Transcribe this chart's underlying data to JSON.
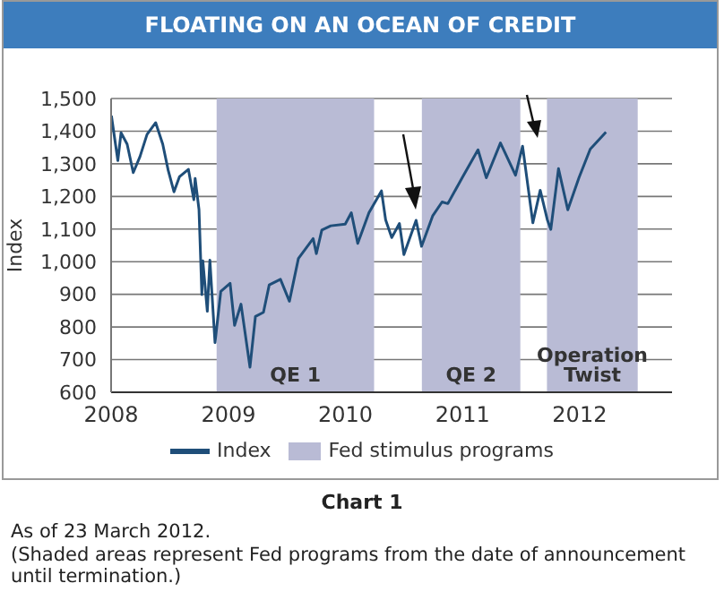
{
  "chart_data": {
    "type": "line",
    "title": "FLOATING ON AN OCEAN OF CREDIT",
    "ylabel": "Index",
    "x": [
      "2008-01-02",
      "2008-01-22",
      "2008-02-01",
      "2008-02-20",
      "2008-03-10",
      "2008-03-31",
      "2008-04-22",
      "2008-05-19",
      "2008-06-10",
      "2008-06-27",
      "2008-07-15",
      "2008-08-01",
      "2008-08-29",
      "2008-09-15",
      "2008-09-19",
      "2008-10-01",
      "2008-10-10",
      "2008-10-13",
      "2008-10-27",
      "2008-11-04",
      "2008-11-20",
      "2008-12-08",
      "2009-01-06",
      "2009-01-20",
      "2009-02-09",
      "2009-03-09",
      "2009-03-26",
      "2009-04-20",
      "2009-05-08",
      "2009-06-12",
      "2009-07-10",
      "2009-08-07",
      "2009-09-22",
      "2009-10-02",
      "2009-10-19",
      "2009-11-16",
      "2009-12-31",
      "2010-01-19",
      "2010-02-08",
      "2010-03-15",
      "2010-04-23",
      "2010-05-06",
      "2010-05-25",
      "2010-06-18",
      "2010-07-02",
      "2010-08-09",
      "2010-08-26",
      "2010-09-30",
      "2010-10-29",
      "2010-11-16",
      "2010-12-31",
      "2011-02-18",
      "2011-03-16",
      "2011-04-29",
      "2011-06-15",
      "2011-07-07",
      "2011-08-08",
      "2011-08-31",
      "2011-09-22",
      "2011-10-03",
      "2011-10-27",
      "2011-11-25",
      "2011-12-30",
      "2012-02-03",
      "2012-03-23"
    ],
    "series": [
      {
        "name": "Index",
        "color": "#1f4e79",
        "values": [
          1447,
          1310,
          1395,
          1360,
          1273,
          1322,
          1390,
          1426,
          1360,
          1280,
          1214,
          1260,
          1283,
          1190,
          1255,
          1160,
          899,
          1003,
          848,
          1005,
          752,
          909,
          934,
          805,
          870,
          677,
          832,
          845,
          929,
          946,
          879,
          1010,
          1071,
          1025,
          1097,
          1110,
          1115,
          1150,
          1056,
          1150,
          1217,
          1128,
          1074,
          1117,
          1022,
          1127,
          1047,
          1141,
          1183,
          1178,
          1258,
          1343,
          1257,
          1364,
          1265,
          1354,
          1119,
          1219,
          1129,
          1099,
          1285,
          1159,
          1258,
          1345,
          1397
        ]
      }
    ],
    "xlim": [
      "2008-01-01",
      "2012-10-15"
    ],
    "xticks": [
      {
        "value": "2008-01-01",
        "label": "2008"
      },
      {
        "value": "2009-01-01",
        "label": "2009"
      },
      {
        "value": "2010-01-01",
        "label": "2010"
      },
      {
        "value": "2011-01-01",
        "label": "2011"
      },
      {
        "value": "2012-01-01",
        "label": "2012"
      }
    ],
    "ylim": [
      600,
      1500
    ],
    "yticks": [
      {
        "value": 600,
        "label": "600"
      },
      {
        "value": 700,
        "label": "700"
      },
      {
        "value": 800,
        "label": "800"
      },
      {
        "value": 900,
        "label": "900"
      },
      {
        "value": 1000,
        "label": "1,000"
      },
      {
        "value": 1100,
        "label": "1,100"
      },
      {
        "value": 1200,
        "label": "1,200"
      },
      {
        "value": 1300,
        "label": "1,300"
      },
      {
        "value": 1400,
        "label": "1,400"
      },
      {
        "value": 1500,
        "label": "1,500"
      }
    ],
    "bands": [
      {
        "axis": "x",
        "from": "2008-11-25",
        "to": "2010-03-31",
        "label": "QE 1",
        "color": "#b9bbd5"
      },
      {
        "axis": "x",
        "from": "2010-08-27",
        "to": "2011-06-30",
        "label": "QE 2",
        "color": "#b9bbd5"
      },
      {
        "axis": "x",
        "from": "2011-09-21",
        "to": "2012-06-30",
        "label": "Operation Twist",
        "color": "#b9bbd5"
      }
    ],
    "grid": "y",
    "legend": "bottom",
    "marker": "none",
    "line_style": "solid",
    "annotations": [
      "Fed stimulus programs",
      "Chart 1",
      "As of 23 March 2012.",
      "(Shaded areas represent Fed programs from the date of announcement until termination.)"
    ]
  }
}
